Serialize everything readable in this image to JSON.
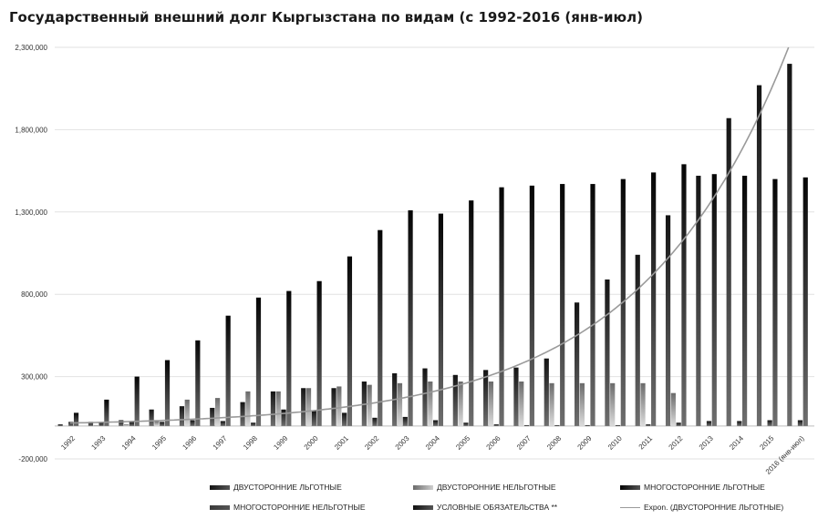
{
  "chart_data": {
    "type": "bar",
    "title": "Государственный внешний долг Кыргызстана по видам (с 1992-2016 (янв-июл)",
    "xlabel": "",
    "ylabel": "",
    "ylim": [
      -200000,
      2300000
    ],
    "yticks": [
      -200000,
      300000,
      800000,
      1300000,
      1800000,
      2300000
    ],
    "ytick_labels": [
      "-200,000",
      "300,000",
      "800,000",
      "1,300,000",
      "1,800,000",
      "2,300,000"
    ],
    "grid": true,
    "legend_position": "bottom",
    "categories": [
      "1992",
      "1993",
      "1994",
      "1995",
      "1996",
      "1997",
      "1998",
      "1999",
      "2000",
      "2001",
      "2002",
      "2003",
      "2004",
      "2005",
      "2006",
      "2007",
      "2008",
      "2009",
      "2010",
      "2011",
      "2012",
      "2013",
      "2014",
      "2015",
      "2016 (янв-июл)"
    ],
    "series": [
      {
        "name": "ДВУСТОРОННИЕ ЛЬГОТНЫЕ",
        "color": "#141414",
        "values": [
          10000,
          25000,
          35000,
          100000,
          120000,
          110000,
          145000,
          210000,
          230000,
          230000,
          270000,
          320000,
          350000,
          310000,
          340000,
          355000,
          410000,
          750000,
          890000,
          1040000,
          1280000,
          1520000,
          1870000,
          2070000,
          2200000
        ]
      },
      {
        "name": "ДВУСТОРОННИЕ НЕЛЬГОТНЫЕ",
        "color": "#6a6a6a",
        "values": [
          0,
          5000,
          10000,
          30000,
          160000,
          170000,
          210000,
          210000,
          230000,
          240000,
          250000,
          260000,
          270000,
          270000,
          270000,
          270000,
          260000,
          260000,
          260000,
          260000,
          200000,
          0,
          0,
          0,
          0
        ]
      },
      {
        "name": "МНОГОСТОРОННИЕ ЛЬГОТНЫЕ",
        "color": "#050505",
        "values": [
          80000,
          160000,
          300000,
          400000,
          520000,
          670000,
          780000,
          820000,
          880000,
          1030000,
          1190000,
          1310000,
          1290000,
          1370000,
          1450000,
          1460000,
          1470000,
          1470000,
          1500000,
          1540000,
          1590000,
          1530000,
          1520000,
          1500000,
          1510000
        ]
      },
      {
        "name": "МНОГОСТОРОННИЕ НЕЛЬГОТНЫЕ",
        "color": "#3a3a3a",
        "values": [
          0,
          0,
          0,
          0,
          0,
          0,
          0,
          0,
          0,
          0,
          0,
          0,
          0,
          0,
          0,
          0,
          0,
          0,
          0,
          0,
          0,
          0,
          0,
          0,
          0
        ]
      },
      {
        "name": "УСЛОВНЫЕ ОБЯЗАТЕЛЬСТВА **",
        "color": "#111111",
        "values": [
          25000,
          20000,
          25000,
          25000,
          35000,
          30000,
          20000,
          100000,
          95000,
          80000,
          50000,
          55000,
          35000,
          20000,
          10000,
          5000,
          5000,
          5000,
          5000,
          10000,
          20000,
          30000,
          30000,
          35000,
          35000
        ]
      }
    ],
    "trendline": {
      "name": "Expon. (ДВУСТОРОННИЕ ЛЬГОТНЫЕ)",
      "type": "exponential",
      "color": "#9a9a9a",
      "start_value": 18000,
      "end_value": 2300000
    }
  }
}
